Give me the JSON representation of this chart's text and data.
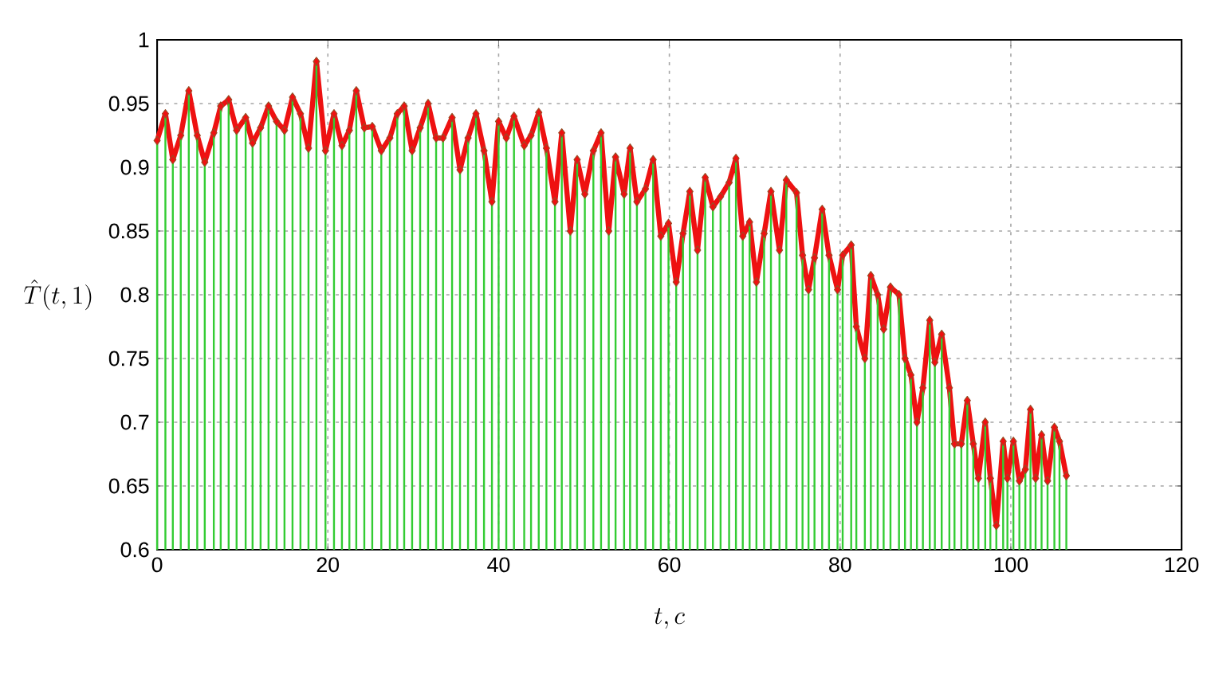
{
  "chart_data": {
    "type": "line",
    "xlabel": "t,c",
    "ylabel": "\\hat{T}(t,1)",
    "xlim": [
      0,
      120
    ],
    "ylim": [
      0.6,
      1
    ],
    "xticks": [
      0,
      20,
      40,
      60,
      80,
      100,
      120
    ],
    "yticks": [
      0.6,
      0.65,
      0.7,
      0.75,
      0.8,
      0.85,
      0.9,
      0.95,
      1
    ],
    "grid": true,
    "marker": "diamond",
    "x": [
      0,
      0.97,
      1.84,
      2.77,
      3.71,
      4.7,
      5.58,
      6.64,
      7.45,
      8.38,
      9.31,
      10.37,
      11.18,
      12.12,
      13.05,
      13.99,
      14.92,
      15.86,
      16.79,
      17.73,
      18.66,
      19.72,
      20.72,
      21.65,
      22.52,
      23.33,
      24.27,
      25.2,
      26.26,
      27.26,
      28.13,
      28.94,
      29.87,
      30.81,
      31.74,
      32.68,
      33.49,
      34.55,
      35.48,
      36.42,
      37.35,
      38.29,
      39.22,
      40.0,
      40.9,
      41.8,
      43.0,
      43.8,
      44.7,
      45.6,
      46.6,
      47.4,
      48.4,
      49.2,
      50.1,
      51.1,
      52.0,
      52.9,
      53.7,
      54.7,
      55.4,
      56.2,
      57.2,
      58.1,
      59.0,
      59.9,
      60.8,
      61.6,
      62.4,
      63.3,
      64.2,
      65.1,
      66.0,
      67.0,
      67.8,
      68.6,
      69.4,
      70.2,
      71.1,
      71.9,
      72.9,
      73.7,
      74.9,
      75.6,
      76.3,
      77.0,
      77.9,
      78.7,
      79.7,
      80.3,
      81.3,
      81.9,
      82.9,
      83.6,
      84.4,
      85.1,
      85.9,
      86.9,
      87.6,
      88.3,
      89.0,
      89.7,
      90.5,
      91.1,
      91.9,
      92.8,
      93.4,
      94.2,
      94.9,
      95.6,
      96.2,
      97.0,
      97.6,
      98.3,
      99.1,
      99.6,
      100.3,
      101.0,
      101.7,
      102.3,
      102.9,
      103.6,
      104.3,
      105.1,
      105.7,
      106.5
    ],
    "series": [
      {
        "type": "bar",
        "color": "#33cc33",
        "values": [
          0.921,
          0.942,
          0.906,
          0.925,
          0.96,
          0.925,
          0.904,
          0.927,
          0.948,
          0.953,
          0.929,
          0.939,
          0.919,
          0.931,
          0.948,
          0.936,
          0.929,
          0.955,
          0.942,
          0.915,
          0.983,
          0.913,
          0.942,
          0.917,
          0.929,
          0.96,
          0.931,
          0.932,
          0.913,
          0.923,
          0.942,
          0.948,
          0.913,
          0.931,
          0.95,
          0.923,
          0.923,
          0.939,
          0.898,
          0.923,
          0.942,
          0.913,
          0.873,
          0.936,
          0.923,
          0.94,
          0.917,
          0.925,
          0.943,
          0.915,
          0.873,
          0.927,
          0.85,
          0.906,
          0.879,
          0.913,
          0.927,
          0.85,
          0.908,
          0.879,
          0.915,
          0.873,
          0.883,
          0.906,
          0.846,
          0.856,
          0.81,
          0.848,
          0.881,
          0.835,
          0.892,
          0.869,
          0.877,
          0.888,
          0.907,
          0.846,
          0.857,
          0.81,
          0.848,
          0.881,
          0.835,
          0.89,
          0.88,
          0.831,
          0.804,
          0.829,
          0.867,
          0.831,
          0.804,
          0.831,
          0.839,
          0.775,
          0.75,
          0.815,
          0.8,
          0.773,
          0.806,
          0.8,
          0.75,
          0.737,
          0.7,
          0.727,
          0.78,
          0.747,
          0.769,
          0.727,
          0.683,
          0.683,
          0.717,
          0.683,
          0.656,
          0.7,
          0.656,
          0.619,
          0.685,
          0.656,
          0.685,
          0.654,
          0.663,
          0.71,
          0.656,
          0.69,
          0.654,
          0.696,
          0.685,
          0.658
        ]
      },
      {
        "color": "#ee1111",
        "values": [
          0.921,
          0.942,
          0.906,
          0.925,
          0.96,
          0.925,
          0.904,
          0.927,
          0.948,
          0.953,
          0.929,
          0.939,
          0.919,
          0.931,
          0.948,
          0.936,
          0.929,
          0.955,
          0.942,
          0.915,
          0.983,
          0.913,
          0.942,
          0.917,
          0.929,
          0.96,
          0.931,
          0.932,
          0.913,
          0.923,
          0.942,
          0.948,
          0.913,
          0.931,
          0.95,
          0.923,
          0.923,
          0.939,
          0.898,
          0.923,
          0.942,
          0.913,
          0.873,
          0.936,
          0.923,
          0.94,
          0.917,
          0.925,
          0.943,
          0.915,
          0.873,
          0.927,
          0.85,
          0.906,
          0.879,
          0.913,
          0.927,
          0.85,
          0.908,
          0.879,
          0.915,
          0.873,
          0.883,
          0.906,
          0.846,
          0.856,
          0.81,
          0.848,
          0.881,
          0.835,
          0.892,
          0.869,
          0.877,
          0.888,
          0.907,
          0.846,
          0.857,
          0.81,
          0.848,
          0.881,
          0.835,
          0.89,
          0.88,
          0.831,
          0.804,
          0.829,
          0.867,
          0.831,
          0.804,
          0.831,
          0.839,
          0.775,
          0.75,
          0.815,
          0.8,
          0.773,
          0.806,
          0.8,
          0.75,
          0.737,
          0.7,
          0.727,
          0.78,
          0.747,
          0.769,
          0.727,
          0.683,
          0.683,
          0.717,
          0.683,
          0.656,
          0.7,
          0.656,
          0.619,
          0.685,
          0.656,
          0.685,
          0.654,
          0.663,
          0.71,
          0.656,
          0.69,
          0.654,
          0.696,
          0.685,
          0.658
        ]
      }
    ]
  }
}
